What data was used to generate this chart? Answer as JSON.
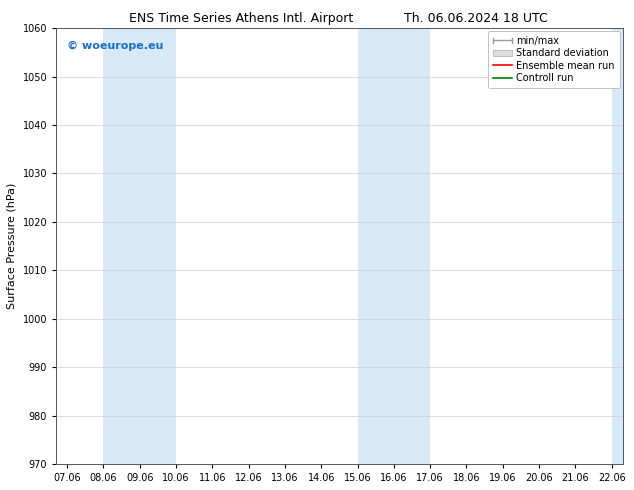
{
  "title_left": "ENS Time Series Athens Intl. Airport",
  "title_right": "Th. 06.06.2024 18 UTC",
  "ylabel": "Surface Pressure (hPa)",
  "ylim": [
    970,
    1060
  ],
  "yticks": [
    970,
    980,
    990,
    1000,
    1010,
    1020,
    1030,
    1040,
    1050,
    1060
  ],
  "xtick_labels": [
    "07.06",
    "08.06",
    "09.06",
    "10.06",
    "11.06",
    "12.06",
    "13.06",
    "14.06",
    "15.06",
    "16.06",
    "17.06",
    "18.06",
    "19.06",
    "20.06",
    "21.06",
    "22.06"
  ],
  "background_color": "#ffffff",
  "plot_bg_color": "#ffffff",
  "band_color": "#d8eaf8",
  "watermark": "© woeurope.eu",
  "watermark_color": "#1a6ec7",
  "title_fontsize": 9,
  "tick_fontsize": 7,
  "ylabel_fontsize": 8,
  "legend_fontsize": 7,
  "grid_color": "#cccccc",
  "spine_color": "#555555"
}
